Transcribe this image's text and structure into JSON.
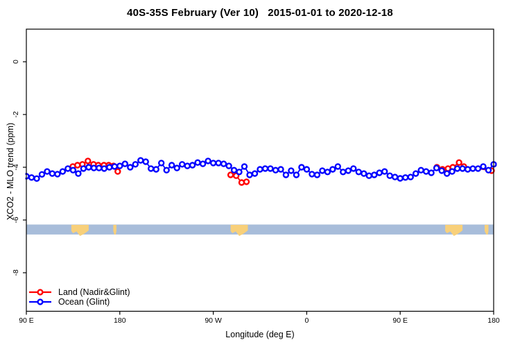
{
  "title": "40S-35S February (Ver 10)   2015-01-01 to 2020-12-18",
  "legend": {
    "items": [
      {
        "label": "Land (Nadir&Glint)",
        "color": "#ff0000",
        "symbol": "open-circle-on-line"
      },
      {
        "label": "Ocean (Glint)",
        "color": "#0000ff",
        "symbol": "open-circle-on-line"
      }
    ]
  },
  "chart_data": {
    "type": "line",
    "x_axis": {
      "title": "Longitude (deg E)",
      "tick_labels": [
        "90 E",
        "180",
        "90 W",
        "0",
        "90 E",
        "180"
      ],
      "tick_pos_deg": [
        0,
        90,
        180,
        270,
        360,
        450
      ],
      "range_deg": [
        0,
        450
      ]
    },
    "y_axis": {
      "title": "XCO2 - MLO trend (ppm)",
      "ticks": [
        0,
        -2,
        -4,
        -6,
        -8
      ],
      "range": [
        1.25,
        -9.55
      ],
      "grid": false
    },
    "map_strip": {
      "ocean_color": "#a8bdda",
      "land_color": "#f8d07a",
      "y_top_ppm": -6.17,
      "y_bottom_ppm": -6.55,
      "land_patches_deg": [
        [
          43.3,
          60
        ],
        [
          83.7,
          86.7
        ],
        [
          196.7,
          213.3
        ],
        [
          403.3,
          420
        ],
        [
          441.3,
          445
        ]
      ]
    },
    "series": [
      {
        "name": "Land (Nadir&Glint)",
        "color": "#ff0000",
        "marker": "open-circle",
        "segments": [
          [
            [
              44.7,
              -3.97
            ],
            [
              49.3,
              -3.92
            ],
            [
              54,
              -3.89
            ],
            [
              59.3,
              -3.76
            ],
            [
              64.7,
              -3.89
            ],
            [
              69.3,
              -3.92
            ],
            [
              74.7,
              -3.92
            ],
            [
              79.3,
              -3.92
            ],
            [
              84,
              -3.95
            ],
            [
              88,
              -4.16
            ]
          ],
          [
            [
              196.7,
              -4.29
            ],
            [
              202,
              -4.32
            ],
            [
              207.3,
              -4.58
            ],
            [
              212,
              -4.55
            ]
          ],
          [
            [
              395.3,
              -4.0
            ],
            [
              400.7,
              -4.08
            ],
            [
              406,
              -4.05
            ],
            [
              410.7,
              -4.0
            ],
            [
              416.7,
              -3.82
            ],
            [
              421.3,
              -3.97
            ],
            [
              448,
              -4.13
            ]
          ]
        ]
      },
      {
        "name": "Ocean (Glint)",
        "color": "#0000ff",
        "marker": "open-circle",
        "segments": [
          [
            [
              0,
              -4.34
            ],
            [
              5,
              -4.39
            ],
            [
              10,
              -4.43
            ],
            [
              15,
              -4.27
            ],
            [
              20,
              -4.16
            ],
            [
              25,
              -4.24
            ],
            [
              30,
              -4.26
            ],
            [
              35,
              -4.16
            ],
            [
              40,
              -4.05
            ],
            [
              45,
              -4.11
            ],
            [
              50,
              -4.24
            ],
            [
              55,
              -4.05
            ],
            [
              60,
              -4.0
            ],
            [
              65,
              -4.03
            ],
            [
              70,
              -4.03
            ],
            [
              75,
              -4.05
            ],
            [
              80,
              -4.0
            ],
            [
              85,
              -3.97
            ],
            [
              90,
              -3.95
            ],
            [
              95,
              -3.87
            ],
            [
              100,
              -4.0
            ],
            [
              105,
              -3.89
            ],
            [
              110,
              -3.74
            ],
            [
              115,
              -3.79
            ],
            [
              120,
              -4.05
            ],
            [
              125,
              -4.08
            ],
            [
              130,
              -3.84
            ],
            [
              135,
              -4.11
            ],
            [
              140,
              -3.92
            ],
            [
              145,
              -4.03
            ],
            [
              150,
              -3.89
            ],
            [
              155,
              -3.95
            ],
            [
              160,
              -3.92
            ],
            [
              165,
              -3.82
            ],
            [
              170,
              -3.87
            ],
            [
              175,
              -3.76
            ],
            [
              180,
              -3.84
            ],
            [
              185,
              -3.84
            ],
            [
              190,
              -3.87
            ],
            [
              195,
              -3.95
            ],
            [
              200,
              -4.11
            ],
            [
              205,
              -4.18
            ],
            [
              210,
              -3.97
            ],
            [
              215,
              -4.29
            ],
            [
              220,
              -4.24
            ],
            [
              225,
              -4.08
            ],
            [
              230,
              -4.05
            ],
            [
              235,
              -4.05
            ],
            [
              240,
              -4.11
            ],
            [
              245,
              -4.08
            ],
            [
              250,
              -4.29
            ],
            [
              255,
              -4.13
            ],
            [
              260,
              -4.29
            ],
            [
              265,
              -4.0
            ],
            [
              270,
              -4.08
            ],
            [
              275,
              -4.26
            ],
            [
              280,
              -4.29
            ],
            [
              285,
              -4.13
            ],
            [
              290,
              -4.18
            ],
            [
              295,
              -4.08
            ],
            [
              300,
              -3.97
            ],
            [
              305,
              -4.18
            ],
            [
              310,
              -4.13
            ],
            [
              315,
              -4.05
            ],
            [
              320,
              -4.18
            ],
            [
              325,
              -4.24
            ],
            [
              330,
              -4.32
            ],
            [
              335,
              -4.29
            ],
            [
              340,
              -4.21
            ],
            [
              345,
              -4.16
            ],
            [
              350,
              -4.32
            ],
            [
              355,
              -4.37
            ],
            [
              360,
              -4.42
            ],
            [
              365,
              -4.39
            ],
            [
              370,
              -4.37
            ],
            [
              375,
              -4.24
            ],
            [
              380,
              -4.11
            ],
            [
              385,
              -4.16
            ],
            [
              390,
              -4.21
            ],
            [
              395,
              -4.03
            ],
            [
              400,
              -4.13
            ],
            [
              405,
              -4.24
            ],
            [
              410,
              -4.16
            ],
            [
              415,
              -4.05
            ],
            [
              420,
              -4.05
            ],
            [
              425,
              -4.08
            ],
            [
              430,
              -4.05
            ],
            [
              435,
              -4.05
            ],
            [
              440,
              -3.97
            ],
            [
              445,
              -4.11
            ],
            [
              450,
              -3.89
            ]
          ]
        ]
      }
    ]
  }
}
